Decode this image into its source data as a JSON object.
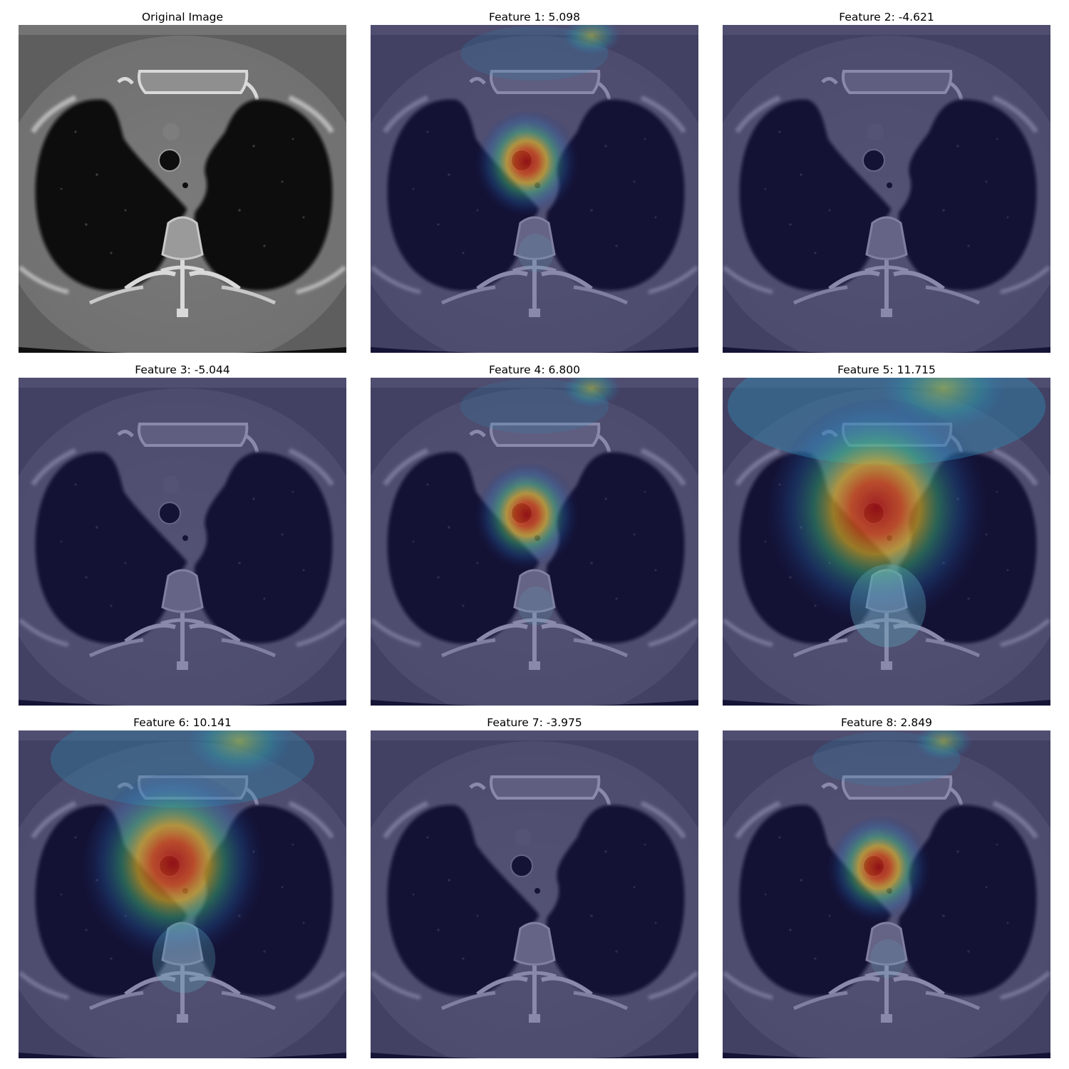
{
  "figure": {
    "panels": [
      {
        "title": "Original Image",
        "overlay": false,
        "score": null
      },
      {
        "title": "Feature 1: 5.098",
        "overlay": true,
        "score": 5.098
      },
      {
        "title": "Feature 2: -4.621",
        "overlay": true,
        "score": -4.621
      },
      {
        "title": "Feature 3: -5.044",
        "overlay": true,
        "score": -5.044
      },
      {
        "title": "Feature 4: 6.800",
        "overlay": true,
        "score": 6.8
      },
      {
        "title": "Feature 5: 11.715",
        "overlay": true,
        "score": 11.715
      },
      {
        "title": "Feature 6: 10.141",
        "overlay": true,
        "score": 10.141
      },
      {
        "title": "Feature 7: -3.975",
        "overlay": true,
        "score": -3.975
      },
      {
        "title": "Feature 8: 2.849",
        "overlay": true,
        "score": 2.849
      }
    ],
    "image_subject": "axial chest CT slice with lungs, trachea and spine",
    "overlay_colormap": "jet",
    "colors": {
      "ct_background": "#6f6f6f",
      "lung": "#0b0b0b",
      "bone": "#d9d9d9",
      "overlay_low": "#1c1a6b",
      "overlay_high": "#b01010"
    }
  }
}
